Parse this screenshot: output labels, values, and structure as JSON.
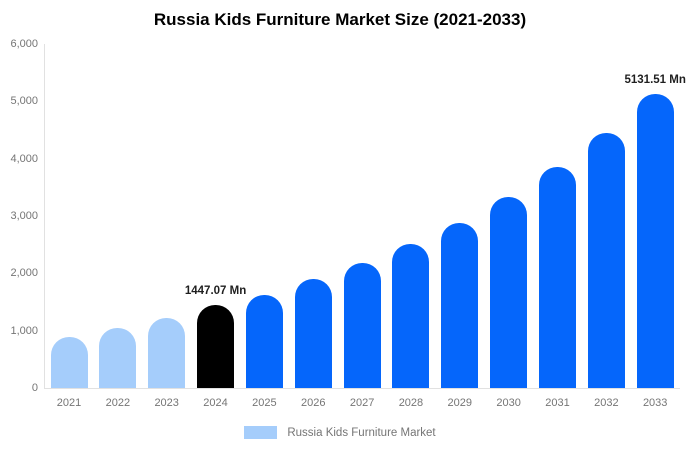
{
  "header": {
    "title": "Russia Kids Furniture Market Size (2021-2033)"
  },
  "legend": {
    "label": "Russia Kids Furniture Market",
    "swatch_color": "#a5cdfb"
  },
  "colors": {
    "historical_bar": "#a5cdfb",
    "base_year_bar": "#000000",
    "forecast_bar": "#0566fb",
    "axis_line": "#e1e1e1",
    "tick_label": "#757575",
    "data_label": "#1f1f1f",
    "title": "#000000"
  },
  "chart_data": {
    "type": "bar",
    "title": "Russia Kids Furniture Market Size (2021-2033)",
    "categories": [
      "2021",
      "2022",
      "2023",
      "2024",
      "2025",
      "2026",
      "2027",
      "2028",
      "2029",
      "2030",
      "2031",
      "2032",
      "2033"
    ],
    "values": [
      890,
      1050,
      1220,
      1447.07,
      1620,
      1900,
      2180,
      2520,
      2870,
      3340,
      3850,
      4450,
      5131.51
    ],
    "bar_colors": [
      "#a5cdfb",
      "#a5cdfb",
      "#a5cdfb",
      "#000000",
      "#0566fb",
      "#0566fb",
      "#0566fb",
      "#0566fb",
      "#0566fb",
      "#0566fb",
      "#0566fb",
      "#0566fb",
      "#0566fb"
    ],
    "data_labels": {
      "2024": "1447.07 Mn",
      "2033": "5131.51 Mn"
    },
    "unit": "Mn",
    "xlabel": "",
    "ylabel": "",
    "ylim": [
      0,
      6000
    ],
    "ytick_step": 1000,
    "ytick_labels": [
      "0",
      "1,000",
      "2,000",
      "3,000",
      "4,000",
      "5,000",
      "6,000"
    ],
    "grid": false,
    "legend_position": "bottom",
    "legend_entries": [
      "Russia Kids Furniture Market"
    ]
  }
}
